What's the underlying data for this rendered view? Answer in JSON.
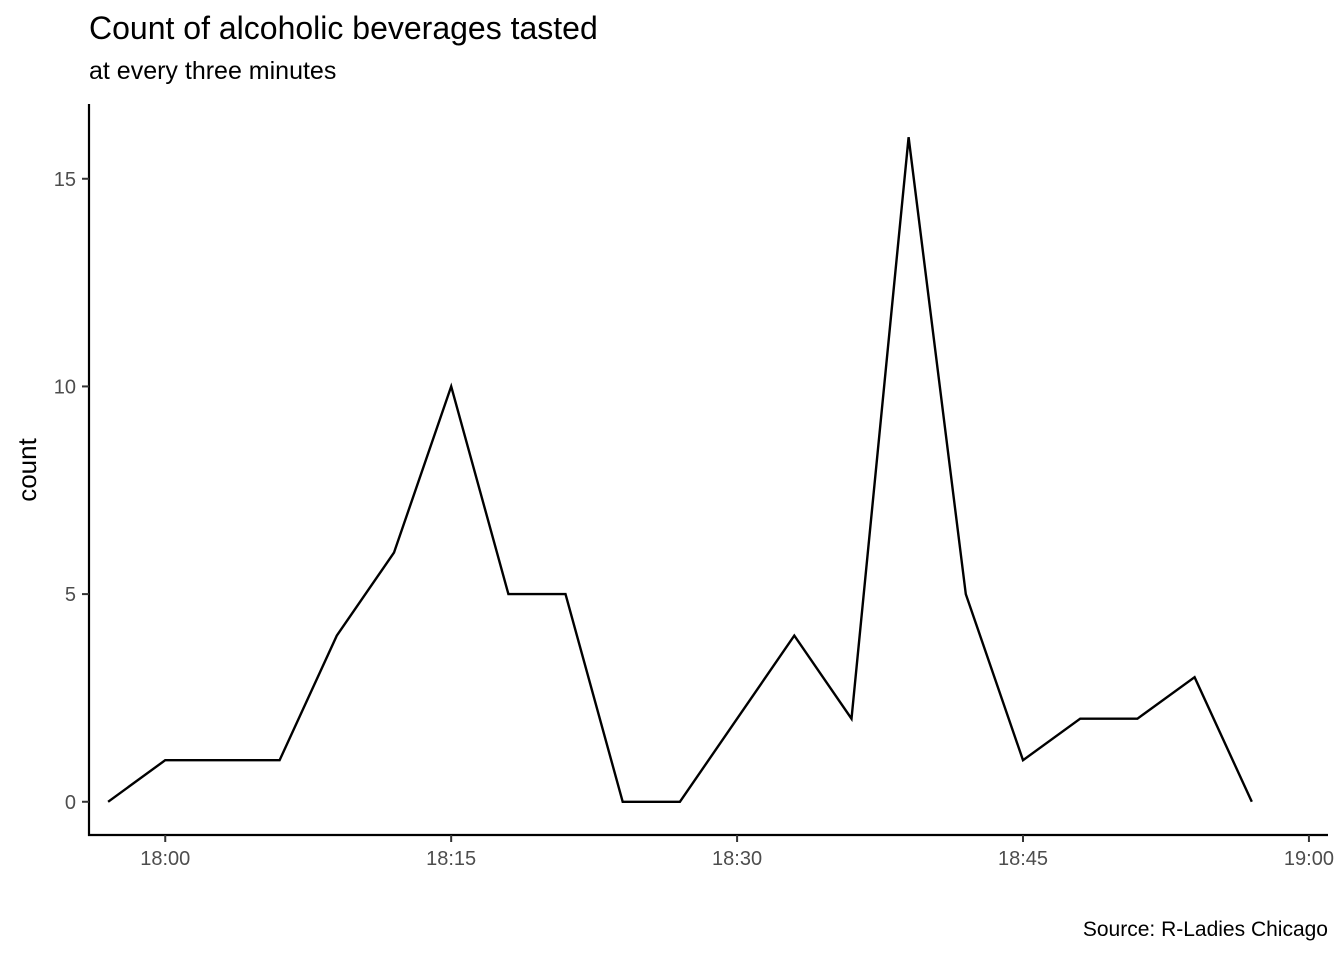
{
  "chart_data": {
    "type": "line",
    "title": "Count of alcoholic beverages tasted",
    "subtitle": "at every three minutes",
    "caption": "Source: R-Ladies Chicago",
    "xlabel": "",
    "ylabel": "count",
    "x_ticks": [
      "18:00",
      "18:15",
      "18:30",
      "18:45",
      "19:00"
    ],
    "y_ticks": [
      "0",
      "5",
      "10",
      "15"
    ],
    "xlim": [
      "17:56",
      "19:01"
    ],
    "ylim": [
      -0.8,
      16.8
    ],
    "grid": false,
    "series": [
      {
        "color": "#000000",
        "x": [
          "17:57",
          "18:00",
          "18:03",
          "18:06",
          "18:09",
          "18:12",
          "18:15",
          "18:18",
          "18:21",
          "18:24",
          "18:27",
          "18:30",
          "18:33",
          "18:36",
          "18:39",
          "18:42",
          "18:45",
          "18:48",
          "18:51",
          "18:54",
          "18:57"
        ],
        "values": [
          0,
          1,
          1,
          1,
          4,
          6,
          10,
          5,
          5,
          0,
          0,
          2,
          4,
          2,
          16,
          5,
          1,
          2,
          2,
          3,
          0
        ]
      }
    ]
  }
}
